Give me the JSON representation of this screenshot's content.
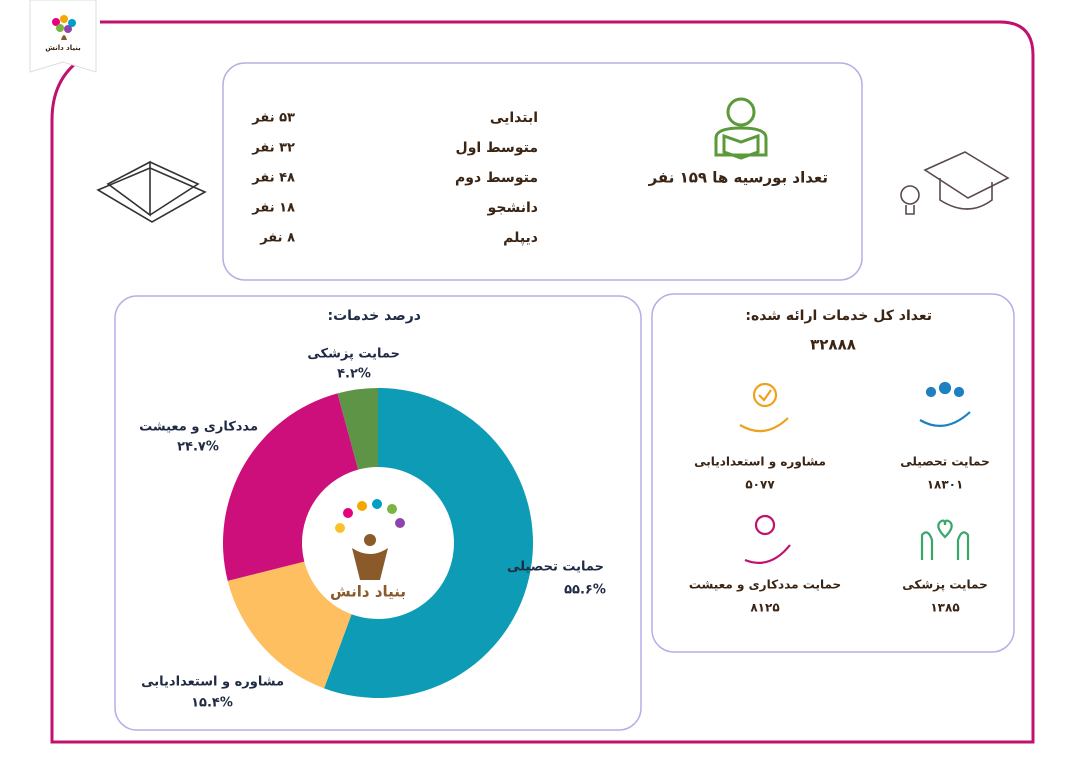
{
  "logo": {
    "text": "بنیاد دانش"
  },
  "scholars": {
    "title": "تعداد بورسیه ها ۱۵۹ نفر",
    "rows": [
      {
        "level": "ابتدایی",
        "count": "۵۳ نفر"
      },
      {
        "level": "متوسط اول",
        "count": "۳۲ نفر"
      },
      {
        "level": "متوسط دوم",
        "count": "۴۸ نفر"
      },
      {
        "level": "دانشجو",
        "count": "۱۸ نفر"
      },
      {
        "level": "دیپلم",
        "count": "۸ نفر"
      }
    ]
  },
  "chart_data": {
    "type": "donut",
    "title": "درصد خدمات:",
    "center_label": "بنیاد دانش",
    "categories": [
      "حمایت تحصیلی",
      "مشاوره و استعدادیابی",
      "مددکاری و معیشت",
      "حمایت پزشکی"
    ],
    "values": [
      55.6,
      15.4,
      24.7,
      4.2
    ],
    "value_labels": [
      "۵۵.۶%",
      "۱۵.۴%",
      "۲۴.۷%",
      "۴.۲%"
    ],
    "colors": [
      "#0e9bb5",
      "#fdbf5f",
      "#cc0f7a",
      "#5e9446"
    ]
  },
  "services": {
    "title": "تعداد کل خدمات ارائه شده:",
    "total": "۳۲۸۸۸",
    "items": [
      {
        "name": "حمایت تحصیلی",
        "count": "۱۸۳۰۱"
      },
      {
        "name": "مشاوره و استعدادیابی",
        "count": "۵۰۷۷"
      },
      {
        "name": "حمایت پزشکی",
        "count": "۱۳۸۵"
      },
      {
        "name": "حمایت مددکاری و معیشت",
        "count": "۸۱۲۵"
      }
    ]
  }
}
